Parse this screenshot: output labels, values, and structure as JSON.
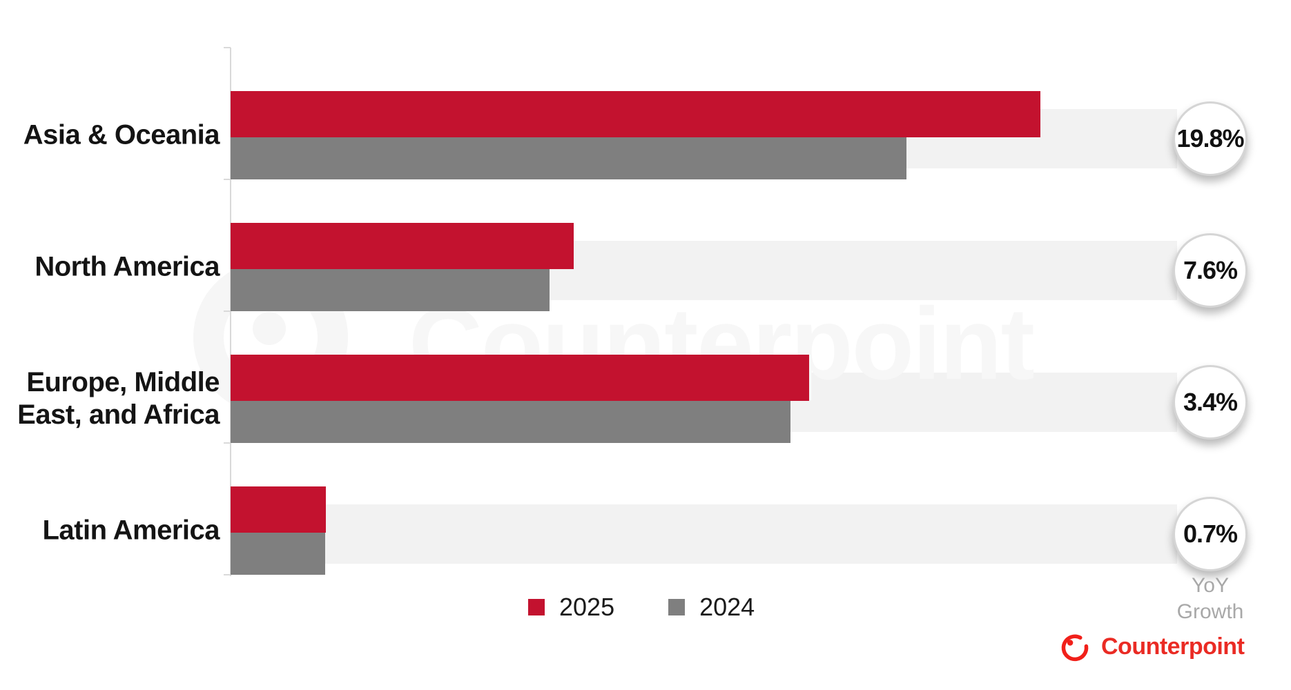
{
  "watermark": {
    "text": "Counterpoint",
    "logo": "counterpoint-ring-logo-ghost"
  },
  "chart_data": {
    "type": "bar",
    "orientation": "horizontal",
    "title": "",
    "xlabel": "",
    "ylabel": "",
    "units": "relative units (Asia & Oceania 2025 bar = 100); x-axis has no visible tick labels",
    "xlim": [
      0,
      117
    ],
    "grid": false,
    "legend_position": "bottom-center",
    "categories": [
      "Asia & Oceania",
      "North America",
      "Europe, Middle East, and Africa",
      "Latin America"
    ],
    "label_lines": [
      [
        "Asia & Oceania"
      ],
      [
        "North America"
      ],
      [
        "Europe, Middle",
        "East, and Africa"
      ],
      [
        "Latin America"
      ]
    ],
    "series": [
      {
        "name": "2025",
        "color": "#c3122f",
        "values": [
          100,
          42.4,
          71.4,
          11.8
        ]
      },
      {
        "name": "2024",
        "color": "#7f7f7f",
        "values": [
          83.5,
          39.4,
          69.1,
          11.7
        ]
      }
    ],
    "yoy_growth_labels": [
      "19.8%",
      "7.6%",
      "3.4%",
      "0.7%"
    ]
  },
  "legend": {
    "items": [
      {
        "label": "2025",
        "color": "#c3122f"
      },
      {
        "label": "2024",
        "color": "#7f7f7f"
      }
    ]
  },
  "footer": {
    "yoy_line1": "YoY",
    "yoy_line2": "Growth",
    "brand_name": "Counterpoint"
  },
  "colors": {
    "bar_2025": "#c3122f",
    "bar_2024": "#7f7f7f",
    "row_track": "#f2f2f2",
    "axis": "#d9d9d9",
    "badge_ring": "#d5d5d5",
    "badge_text": "#111111",
    "yoy_note_text": "#a8a8a8",
    "brand_red": "#ea2b24",
    "watermark": "#f7f7f7"
  }
}
